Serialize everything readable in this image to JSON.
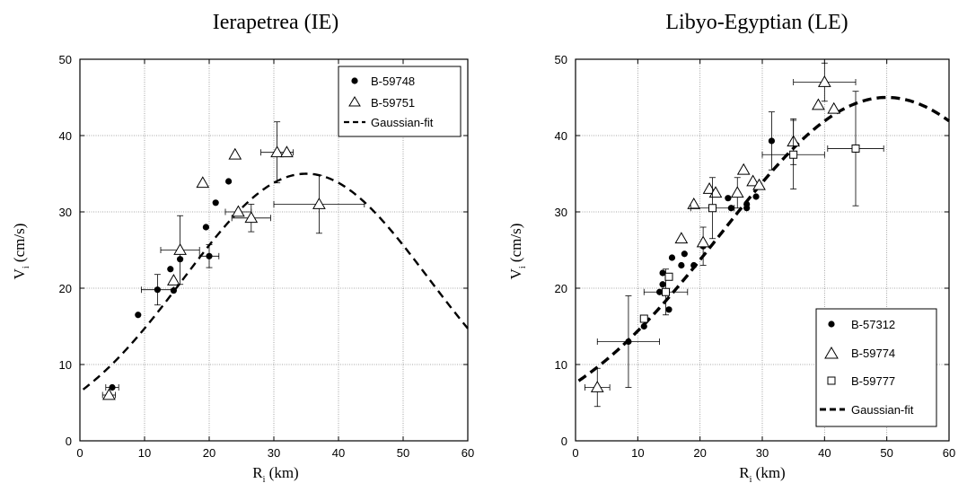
{
  "chart_data": [
    {
      "type": "scatter",
      "title": "Ierapetrea (IE)",
      "xlabel": "R",
      "xlabel_sub": "i",
      "xlabel_unit": "(km)",
      "ylabel": "V",
      "ylabel_sub": "i",
      "ylabel_unit": "(cm/s)",
      "xlim": [
        0,
        60
      ],
      "ylim": [
        0,
        50
      ],
      "xticks": [
        0,
        10,
        20,
        30,
        40,
        50,
        60
      ],
      "yticks": [
        0,
        10,
        20,
        30,
        40,
        50
      ],
      "grid": true,
      "legend_position": "top-right",
      "series": [
        {
          "name": "B-59748",
          "marker": "filled-circle",
          "points": [
            {
              "x": 5.0,
              "y": 7.0,
              "xerr": 1.0
            },
            {
              "x": 9.0,
              "y": 16.5
            },
            {
              "x": 12.0,
              "y": 19.8,
              "xerr": 2.5,
              "yerr": 2.0
            },
            {
              "x": 14.0,
              "y": 22.5
            },
            {
              "x": 14.5,
              "y": 19.7
            },
            {
              "x": 15.5,
              "y": 23.8
            },
            {
              "x": 19.5,
              "y": 28.0
            },
            {
              "x": 20.0,
              "y": 24.2,
              "xerr": 1.5,
              "yerr": 1.5
            },
            {
              "x": 21.0,
              "y": 31.2
            },
            {
              "x": 23.0,
              "y": 34.0
            }
          ]
        },
        {
          "name": "B-59751",
          "marker": "open-triangle",
          "points": [
            {
              "x": 4.5,
              "y": 6.0,
              "xerr": 1.0
            },
            {
              "x": 14.5,
              "y": 21.0
            },
            {
              "x": 15.5,
              "y": 25.0,
              "xerr": 3.0,
              "yerr": 4.5
            },
            {
              "x": 19.0,
              "y": 33.8
            },
            {
              "x": 24.0,
              "y": 37.5
            },
            {
              "x": 24.5,
              "y": 30.0,
              "xerr": 2.0
            },
            {
              "x": 26.5,
              "y": 29.2,
              "xerr": 3.0,
              "yerr": 1.8
            },
            {
              "x": 30.5,
              "y": 37.8,
              "xerr": 2.5,
              "yerr": 4.0
            },
            {
              "x": 32.0,
              "y": 37.8
            },
            {
              "x": 37.0,
              "y": 31.0,
              "xerr": 7.0,
              "yerr": 3.8
            }
          ]
        },
        {
          "name": "Gaussian-fit",
          "marker": "dashed-line",
          "line": {
            "amplitude": 35.0,
            "center": 35.0,
            "sigma": 19.0,
            "x_start": 0.5,
            "x_end": 60
          }
        }
      ]
    },
    {
      "type": "scatter",
      "title": "Libyo-Egyptian (LE)",
      "xlabel": "R",
      "xlabel_sub": "i",
      "xlabel_unit": "(km)",
      "ylabel": "V",
      "ylabel_sub": "i",
      "ylabel_unit": "(cm/s)",
      "xlim": [
        0,
        60
      ],
      "ylim": [
        0,
        50
      ],
      "xticks": [
        0,
        10,
        20,
        30,
        40,
        50,
        60
      ],
      "yticks": [
        0,
        10,
        20,
        30,
        40,
        50
      ],
      "grid": true,
      "legend_position": "bottom-right",
      "series": [
        {
          "name": "B-57312",
          "marker": "filled-circle",
          "points": [
            {
              "x": 8.5,
              "y": 13.0,
              "xerr": 5.0,
              "yerr": 6.0
            },
            {
              "x": 11.0,
              "y": 15.0
            },
            {
              "x": 13.5,
              "y": 19.5
            },
            {
              "x": 14.0,
              "y": 22.0
            },
            {
              "x": 14.0,
              "y": 20.5
            },
            {
              "x": 15.0,
              "y": 17.2
            },
            {
              "x": 15.5,
              "y": 24.0
            },
            {
              "x": 17.0,
              "y": 23.0
            },
            {
              "x": 17.5,
              "y": 24.5
            },
            {
              "x": 19.0,
              "y": 23.0
            },
            {
              "x": 20.5,
              "y": 25.5,
              "yerr": 2.5
            },
            {
              "x": 24.5,
              "y": 31.8
            },
            {
              "x": 25.0,
              "y": 30.5
            },
            {
              "x": 27.5,
              "y": 31.0
            },
            {
              "x": 27.5,
              "y": 30.5
            },
            {
              "x": 29.0,
              "y": 32.0
            },
            {
              "x": 31.5,
              "y": 39.3,
              "yerr": 3.8
            }
          ]
        },
        {
          "name": "B-59774",
          "marker": "open-triangle",
          "points": [
            {
              "x": 3.5,
              "y": 7.0,
              "xerr": 2.0,
              "yerr": 2.5
            },
            {
              "x": 17.0,
              "y": 26.5
            },
            {
              "x": 19.0,
              "y": 31.0
            },
            {
              "x": 20.5,
              "y": 26.0
            },
            {
              "x": 21.5,
              "y": 33.0
            },
            {
              "x": 22.5,
              "y": 32.5
            },
            {
              "x": 26.0,
              "y": 32.5,
              "yerr": 2.0
            },
            {
              "x": 27.0,
              "y": 35.5
            },
            {
              "x": 28.5,
              "y": 34.0
            },
            {
              "x": 29.5,
              "y": 33.5
            },
            {
              "x": 35.0,
              "y": 39.2,
              "yerr": 3.0
            },
            {
              "x": 39.0,
              "y": 44.0
            },
            {
              "x": 40.0,
              "y": 47.0,
              "xerr": 5.0,
              "yerr": 2.5
            },
            {
              "x": 41.5,
              "y": 43.5
            }
          ]
        },
        {
          "name": "B-59777",
          "marker": "open-square",
          "points": [
            {
              "x": 11.0,
              "y": 16.0
            },
            {
              "x": 14.5,
              "y": 19.5,
              "xerr": 3.5,
              "yerr": 3.0
            },
            {
              "x": 15.0,
              "y": 21.5
            },
            {
              "x": 22.0,
              "y": 30.5,
              "xerr": 3.5,
              "yerr": 4.0
            },
            {
              "x": 35.0,
              "y": 37.5,
              "xerr": 5.0,
              "yerr": 4.5
            },
            {
              "x": 45.0,
              "y": 38.3,
              "xerr": 4.5,
              "yerr": 7.5
            }
          ]
        },
        {
          "name": "Gaussian-fit",
          "marker": "dashed-line",
          "line": {
            "amplitude": 45.0,
            "center": 50.0,
            "sigma": 26.5,
            "x_start": 0.5,
            "x_end": 60
          }
        }
      ]
    }
  ]
}
